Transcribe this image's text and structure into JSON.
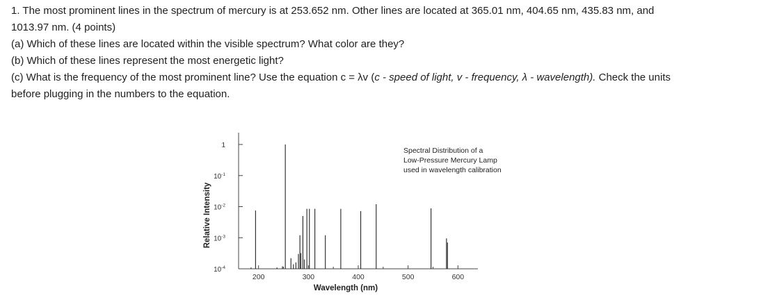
{
  "question": {
    "line1": "1. The most prominent lines in the spectrum of mercury is at 253.652 nm. Other lines are located at 365.01 nm, 404.65 nm, 435.83 nm, and",
    "line2": "1013.97 nm. (4 points)",
    "part_a": "(a) Which of these lines are located within the visible spectrum? What color are they?",
    "part_b": "(b) Which of these lines represent the most energetic light?",
    "part_c_pre": "(c) What is the frequency of the most prominent line? Use the equation c = λv (",
    "part_c_italic": "c - speed of light, v - frequency, λ - wavelength).",
    "part_c_post": " Check the units",
    "part_c_line2": "before plugging in the numbers to the equation."
  },
  "chart_data": {
    "type": "bar",
    "title_lines": [
      "Spectral Distribution of a",
      "Low-Pressure Mercury Lamp",
      "used in wavelength calibration"
    ],
    "xlabel": "Wavelength (nm)",
    "ylabel": "Relative Intensity",
    "x_ticks": [
      200,
      300,
      400,
      500,
      600
    ],
    "xlim": [
      160,
      640
    ],
    "y_scale": "log",
    "ylim": [
      0.0001,
      1
    ],
    "y_ticks": [
      {
        "value": 1,
        "base": "1",
        "exp": ""
      },
      {
        "value": 0.1,
        "base": "10",
        "exp": "-1"
      },
      {
        "value": 0.01,
        "base": "10",
        "exp": "-2"
      },
      {
        "value": 0.001,
        "base": "10",
        "exp": "-3"
      },
      {
        "value": 0.0001,
        "base": "10",
        "exp": "-4"
      }
    ],
    "grid": false,
    "lines": [
      {
        "x": 185,
        "y": 0.00011
      },
      {
        "x": 194,
        "y": 0.0075
      },
      {
        "x": 237,
        "y": 0.00011
      },
      {
        "x": 248,
        "y": 0.00012
      },
      {
        "x": 253.7,
        "y": 1.0
      },
      {
        "x": 265,
        "y": 0.00022
      },
      {
        "x": 270,
        "y": 0.00014
      },
      {
        "x": 275,
        "y": 0.00016
      },
      {
        "x": 280,
        "y": 0.0003
      },
      {
        "x": 283,
        "y": 0.0012
      },
      {
        "x": 285,
        "y": 0.00032
      },
      {
        "x": 289,
        "y": 0.005
      },
      {
        "x": 292,
        "y": 0.0002
      },
      {
        "x": 297,
        "y": 0.0085
      },
      {
        "x": 302,
        "y": 0.0085
      },
      {
        "x": 313,
        "y": 0.0085
      },
      {
        "x": 334,
        "y": 0.0012
      },
      {
        "x": 365,
        "y": 0.0085
      },
      {
        "x": 405,
        "y": 0.0072
      },
      {
        "x": 436,
        "y": 0.012
      },
      {
        "x": 546,
        "y": 0.0088
      },
      {
        "x": 577,
        "y": 0.00095
      },
      {
        "x": 579,
        "y": 0.0007
      }
    ]
  }
}
